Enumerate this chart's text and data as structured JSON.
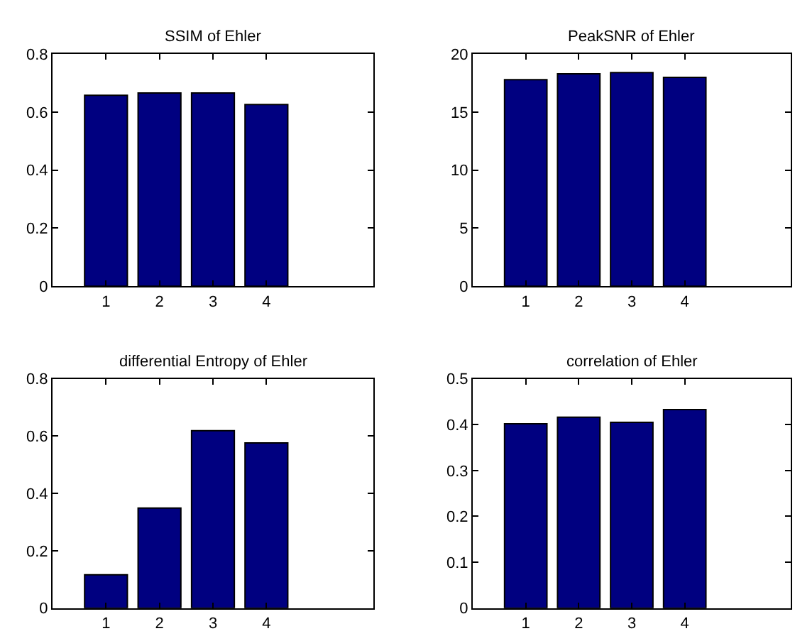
{
  "chart_data": [
    {
      "type": "bar",
      "title": "SSIM of Ehler",
      "x": [
        1,
        2,
        3,
        4
      ],
      "values": [
        0.658,
        0.666,
        0.666,
        0.626
      ],
      "color": "#000080",
      "xlim": [
        0,
        6
      ],
      "xticks": [
        1,
        2,
        3,
        4
      ],
      "ylim": [
        0,
        0.8
      ],
      "yticks": [
        0,
        0.2,
        0.4,
        0.6,
        0.8
      ]
    },
    {
      "type": "bar",
      "title": "PeakSNR of Ehler",
      "x": [
        1,
        2,
        3,
        4
      ],
      "values": [
        17.8,
        18.3,
        18.4,
        18.0
      ],
      "color": "#000080",
      "xlim": [
        0,
        6
      ],
      "xticks": [
        1,
        2,
        3,
        4
      ],
      "ylim": [
        0,
        20
      ],
      "yticks": [
        0,
        5,
        10,
        15,
        20
      ]
    },
    {
      "type": "bar",
      "title": "differential Entropy of Ehler",
      "x": [
        1,
        2,
        3,
        4
      ],
      "values": [
        0.116,
        0.349,
        0.619,
        0.576
      ],
      "color": "#000080",
      "xlim": [
        0,
        6
      ],
      "xticks": [
        1,
        2,
        3,
        4
      ],
      "ylim": [
        0,
        0.8
      ],
      "yticks": [
        0,
        0.2,
        0.4,
        0.6,
        0.8
      ]
    },
    {
      "type": "bar",
      "title": "correlation of Ehler",
      "x": [
        1,
        2,
        3,
        4
      ],
      "values": [
        0.402,
        0.416,
        0.405,
        0.433
      ],
      "color": "#000080",
      "xlim": [
        0,
        6
      ],
      "xticks": [
        1,
        2,
        3,
        4
      ],
      "ylim": [
        0,
        0.5
      ],
      "yticks": [
        0,
        0.1,
        0.2,
        0.3,
        0.4,
        0.5
      ]
    }
  ]
}
